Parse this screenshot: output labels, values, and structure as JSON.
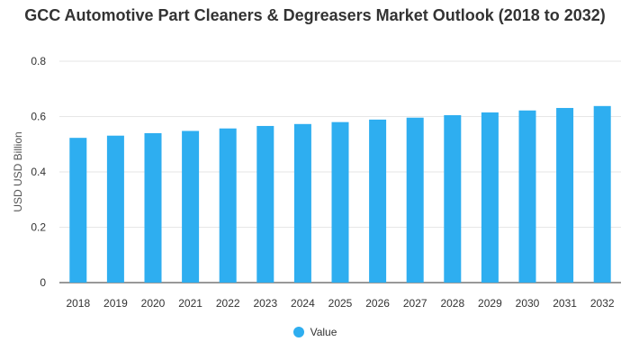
{
  "chart_data": {
    "type": "bar",
    "title": "GCC Automotive Part Cleaners & Degreasers Market Outlook (2018 to 2032)",
    "xlabel": "",
    "ylabel": "USD USD Billion",
    "categories": [
      "2018",
      "2019",
      "2020",
      "2021",
      "2022",
      "2023",
      "2024",
      "2025",
      "2026",
      "2027",
      "2028",
      "2029",
      "2030",
      "2031",
      "2032"
    ],
    "series": [
      {
        "name": "Value",
        "values": [
          0.523,
          0.531,
          0.54,
          0.548,
          0.557,
          0.566,
          0.573,
          0.58,
          0.589,
          0.596,
          0.605,
          0.615,
          0.622,
          0.631,
          0.638
        ]
      }
    ],
    "ylim": [
      0,
      0.8
    ],
    "yticks": [
      "0",
      "0.2",
      "0.4",
      "0.6",
      "0.8"
    ],
    "ytick_values": [
      0,
      0.2,
      0.4,
      0.6,
      0.8
    ],
    "grid": true,
    "legend_position": "bottom-center",
    "bar_color": "#2eaef0"
  }
}
